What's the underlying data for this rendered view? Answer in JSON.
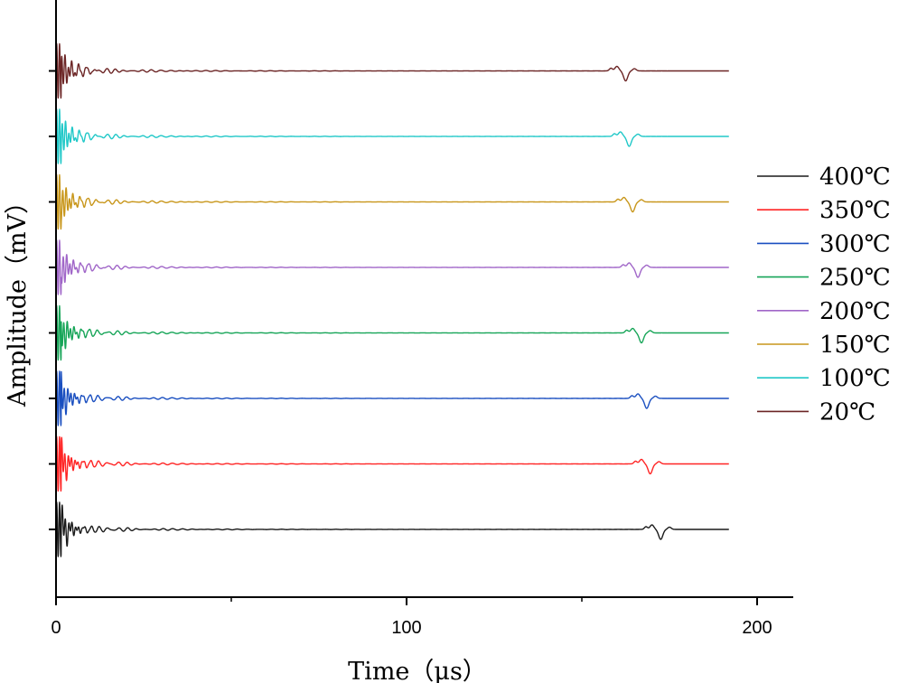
{
  "chart_data": {
    "type": "line",
    "title": "",
    "xlabel": "Time（μs）",
    "ylabel": "Amplitude（mV）",
    "xlim": [
      0,
      210
    ],
    "x_ticks": [
      0,
      100,
      200
    ],
    "x_tick_labels": [
      "0",
      "100",
      "200"
    ],
    "x_end": 192,
    "y_ticks_labeled": false,
    "legend": "right",
    "series": [
      {
        "name": "400℃",
        "color": "#1a1a1a",
        "baseline_rank": 0,
        "echo_time": 172.5,
        "burst_time": 1.5
      },
      {
        "name": "350℃",
        "color": "#ff2424",
        "baseline_rank": 1,
        "echo_time": 169.5,
        "burst_time": 1.5
      },
      {
        "name": "300℃",
        "color": "#1a4fc0",
        "baseline_rank": 2,
        "echo_time": 168.5,
        "burst_time": 1.5
      },
      {
        "name": "250℃",
        "color": "#17a558",
        "baseline_rank": 3,
        "echo_time": 167.0,
        "burst_time": 1.5
      },
      {
        "name": "200℃",
        "color": "#a066c8",
        "baseline_rank": 4,
        "echo_time": 166.0,
        "burst_time": 1.5
      },
      {
        "name": "150℃",
        "color": "#c8961a",
        "baseline_rank": 5,
        "echo_time": 164.5,
        "burst_time": 1.5
      },
      {
        "name": "100℃",
        "color": "#20c8c8",
        "baseline_rank": 6,
        "echo_time": 163.5,
        "burst_time": 1.5
      },
      {
        "name": "20℃",
        "color": "#6b2424",
        "baseline_rank": 7,
        "echo_time": 162.5,
        "burst_time": 1.5
      }
    ]
  }
}
